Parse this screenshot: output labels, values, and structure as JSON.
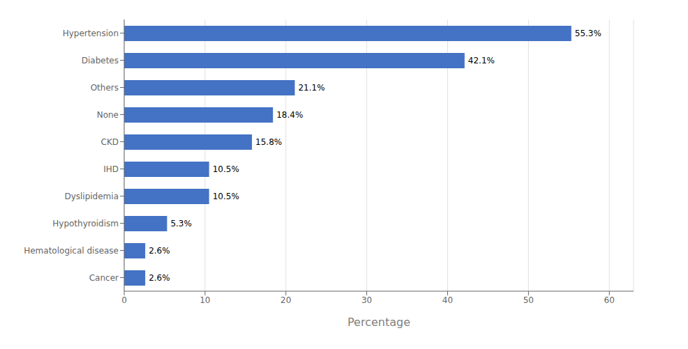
{
  "chart_data": {
    "type": "bar",
    "orientation": "horizontal",
    "categories": [
      "Hypertension",
      "Diabetes",
      "Others",
      "None",
      "CKD",
      "IHD",
      "Dyslipidemia",
      "Hypothyroidism",
      "Hematological disease",
      "Cancer"
    ],
    "values": [
      55.3,
      42.1,
      21.1,
      18.4,
      15.8,
      10.5,
      10.5,
      5.3,
      2.6,
      2.6
    ],
    "value_labels": [
      "55.3%",
      "42.1%",
      "21.1%",
      "18.4%",
      "15.8%",
      "10.5%",
      "10.5%",
      "5.3%",
      "2.6%",
      "2.6%"
    ],
    "data_labels": true,
    "color": "#4472C4",
    "xlabel": "Percentage",
    "xlim": [
      0,
      63
    ],
    "xticks": [
      0,
      10,
      20,
      30,
      40,
      50,
      60
    ],
    "grid": true
  }
}
